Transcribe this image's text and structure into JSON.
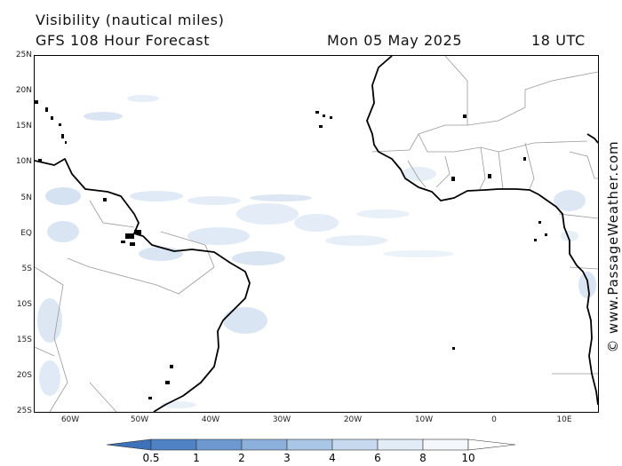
{
  "header": {
    "title": "Visibility (nautical miles)",
    "model": "GFS 108 Hour Forecast",
    "date": "Mon 05 May 2025",
    "time": "18 UTC"
  },
  "credit": "© www.PassageWeather.com",
  "map": {
    "lat_labels": [
      "25N",
      "20N",
      "15N",
      "10N",
      "5N",
      "EQ",
      "5S",
      "10S",
      "15S",
      "20S",
      "25S"
    ],
    "lon_labels": [
      "60W",
      "50W",
      "40W",
      "30W",
      "20W",
      "10W",
      "0",
      "10E"
    ],
    "land_color": "#ffffff",
    "coast_color": "#000000",
    "border_color": "#999999",
    "haze_color": "#8fb3dd"
  },
  "legend": {
    "labels": [
      "0.5",
      "1",
      "2",
      "3",
      "4",
      "6",
      "8",
      "10"
    ],
    "colors": [
      "#3d72b8",
      "#4f82c4",
      "#6d98d0",
      "#8cb0dc",
      "#a9c6e7",
      "#c6d9ef",
      "#e2ecf7",
      "#ffffff"
    ]
  }
}
